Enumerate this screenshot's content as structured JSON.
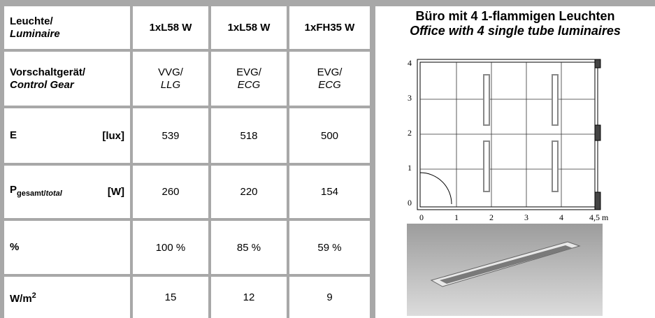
{
  "table": {
    "rows": [
      {
        "label": "Leuchte/",
        "label_italic": "Luminaire",
        "cells": [
          "1xL58 W",
          "1xL58 W",
          "1xFH35 W"
        ]
      },
      {
        "label": "Vorschaltgerät/",
        "label_italic": "Control Gear",
        "cells": [
          {
            "text": "VVG/",
            "italic": "LLG"
          },
          {
            "text": "EVG/",
            "italic": "ECG"
          },
          {
            "text": "EVG/",
            "italic": "ECG"
          }
        ]
      },
      {
        "label": "E",
        "unit": "[lux]",
        "cells": [
          539,
          518,
          500
        ]
      },
      {
        "label": "P",
        "sub": "gesamt/",
        "sub_italic": "total",
        "unit": "[W]",
        "cells": [
          260,
          220,
          154
        ]
      },
      {
        "label": "%",
        "cells": [
          "100 %",
          "85 %",
          "59 %"
        ]
      },
      {
        "label": "W/m",
        "sup": "2",
        "cells": [
          15,
          12,
          9
        ]
      }
    ]
  },
  "figure": {
    "title": "Büro mit 4 1-flammigen Leuchten",
    "subtitle": "Office with 4 single tube luminaires",
    "y_labels": [
      "0",
      "1",
      "2",
      "3",
      "4"
    ],
    "x_labels": [
      "0",
      "1",
      "2",
      "3",
      "4",
      "4,5 m"
    ]
  }
}
